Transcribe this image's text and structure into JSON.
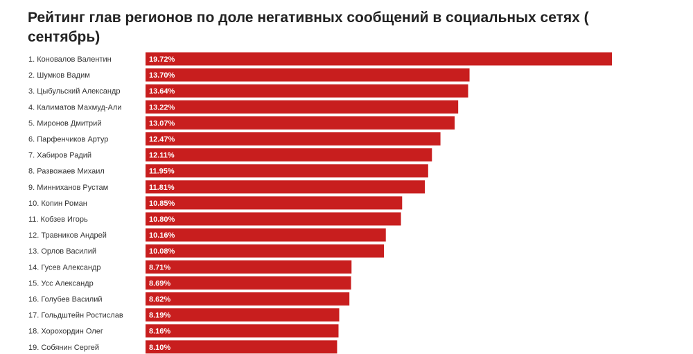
{
  "chart_data": {
    "type": "bar",
    "orientation": "horizontal",
    "title": "Рейтинг глав регионов по доле негативных сообщений в социальных сетях ( сентябрь)",
    "categories": [
      "1. Коновалов Валентин",
      "2. Шумков Вадим",
      "3. Цыбульский Александр",
      "4. Калиматов Махмуд-Али",
      "5. Миронов Дмитрий",
      "6. Парфенчиков Артур",
      "7. Хабиров Радий",
      "8. Развожаев Михаил",
      "9. Минниханов Рустам",
      "10. Копин Роман",
      "11. Кобзев Игорь",
      "12. Травников Андрей",
      "13. Орлов Василий",
      "14. Гусев Александр",
      "15. Усс Александр",
      "16. Голубев Василий",
      "17. Гольдштейн Ростислав",
      "18. Хорохордин Олег",
      "19. Собянин Сергей"
    ],
    "values": [
      19.72,
      13.7,
      13.64,
      13.22,
      13.07,
      12.47,
      12.11,
      11.95,
      11.81,
      10.85,
      10.8,
      10.16,
      10.08,
      8.71,
      8.69,
      8.62,
      8.19,
      8.16,
      8.1
    ],
    "value_labels": [
      "19.72%",
      "13.70%",
      "13.64%",
      "13.22%",
      "13.07%",
      "12.47%",
      "12.11%",
      "11.95%",
      "11.81%",
      "10.85%",
      "10.80%",
      "10.16%",
      "10.08%",
      "8.71%",
      "8.69%",
      "8.62%",
      "8.19%",
      "8.16%",
      "8.10%"
    ],
    "xlim": [
      0,
      19.72
    ],
    "grid": false,
    "legend": "none",
    "bar_color": "#c81e1e"
  }
}
